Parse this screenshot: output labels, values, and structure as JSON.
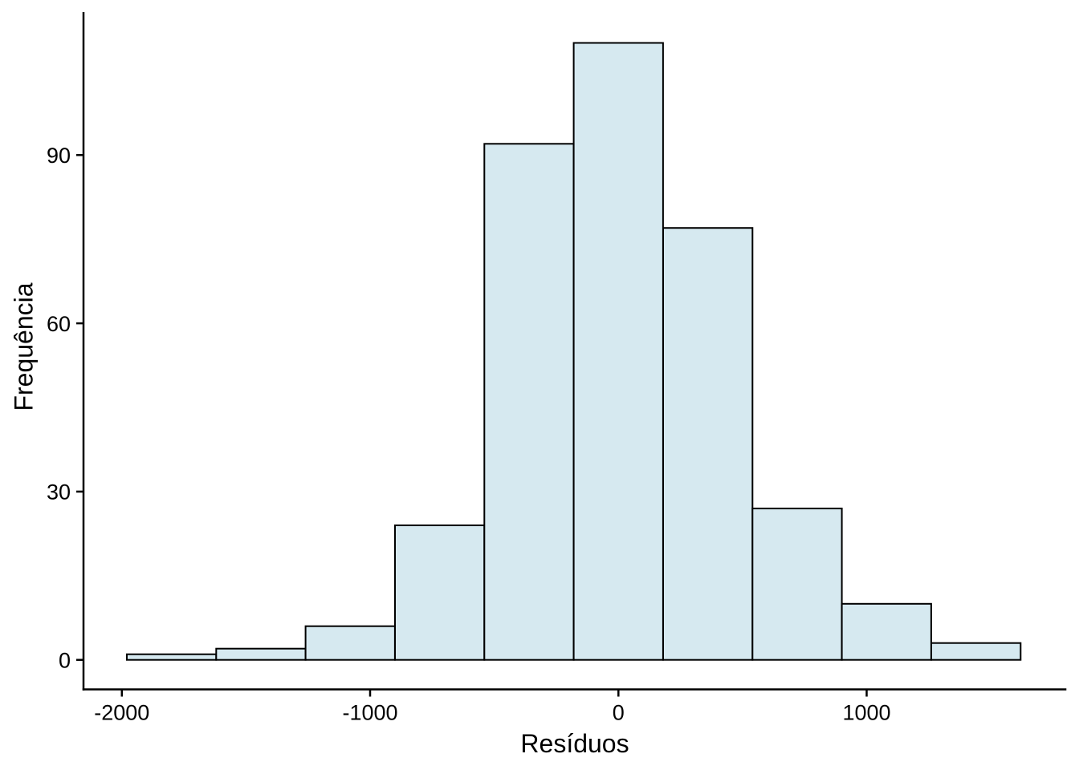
{
  "figure": {
    "background": "#FFFFFF"
  },
  "chart_data": {
    "type": "bar",
    "subtype": "histogram",
    "title": "",
    "xlabel": "Resíduos",
    "ylabel": "Frequência",
    "bin_edges": [
      -1980,
      -1620,
      -1260,
      -900,
      -540,
      -180,
      180,
      540,
      900,
      1260,
      1620
    ],
    "values": [
      1,
      2,
      6,
      24,
      92,
      110,
      77,
      27,
      10,
      3
    ],
    "x_ticks": [
      -2000,
      -1000,
      0,
      1000
    ],
    "y_ticks": [
      0,
      30,
      60,
      90
    ],
    "xlim": [
      -2155,
      1805
    ],
    "ylim": [
      -5.3,
      115.5
    ],
    "grid": false,
    "legend": "none",
    "colors": {
      "bar_fill": "#D6E9F0",
      "bar_stroke": "#000000",
      "axis": "#000000",
      "text": "#000000"
    }
  }
}
